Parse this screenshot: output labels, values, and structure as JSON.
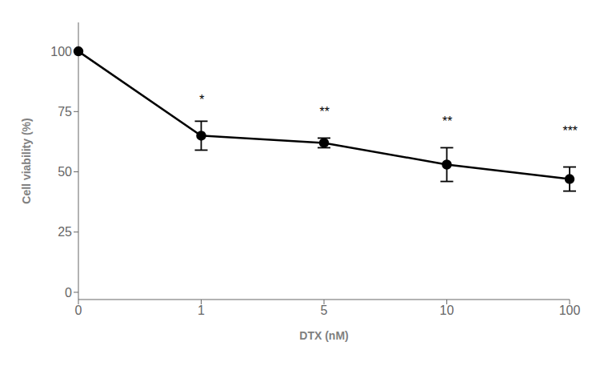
{
  "chart_data": {
    "type": "line",
    "xlabel": "DTX (nM)",
    "ylabel": "Cell viability (%)",
    "categories": [
      "0",
      "1",
      "5",
      "10",
      "100"
    ],
    "values": [
      100,
      65,
      62,
      53,
      47
    ],
    "errors": [
      0,
      6,
      2,
      7,
      5
    ],
    "color": "#000000",
    "marker": "circle",
    "line_style": "solid",
    "ylim": [
      -3,
      112
    ],
    "yticks": [
      0,
      25,
      50,
      75,
      100
    ],
    "grid": false,
    "annotations": [
      {
        "x": "1",
        "y": 77,
        "text": "*"
      },
      {
        "x": "5",
        "y": 72,
        "text": "**"
      },
      {
        "x": "10",
        "y": 68,
        "text": "**"
      },
      {
        "x": "100",
        "y": 64,
        "text": "***"
      }
    ]
  }
}
